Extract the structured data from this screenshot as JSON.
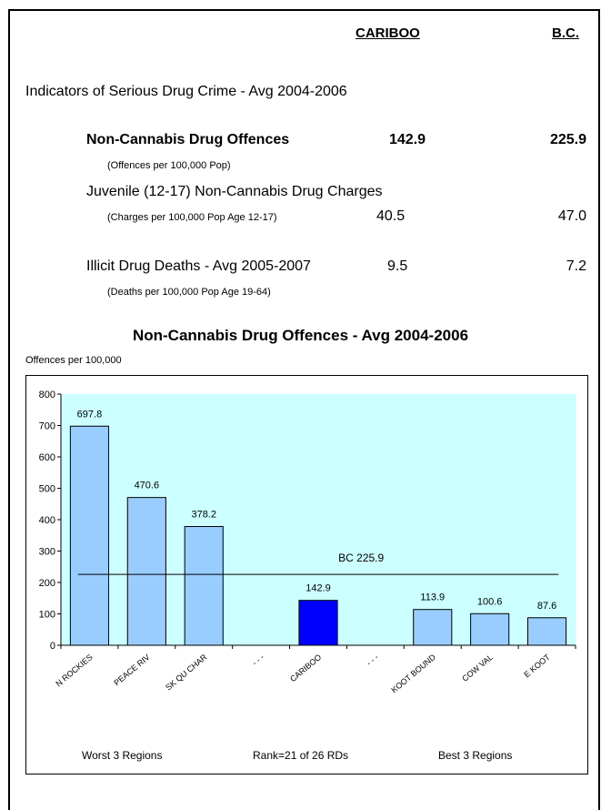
{
  "header": {
    "col1": "CARIBOO",
    "col2": "B.C."
  },
  "section_title": "Indicators of Serious Drug Crime - Avg 2004-2006",
  "indicators": {
    "noncannabis": {
      "label": "Non-Cannabis Drug Offences",
      "sub": "(Offences per 100,000 Pop)",
      "cariboo": "142.9",
      "bc": "225.9"
    },
    "juvenile": {
      "label": "Juvenile (12-17) Non-Cannabis Drug Charges",
      "sub": "(Charges per 100,000 Pop Age 12-17)",
      "cariboo": "40.5",
      "bc": "47.0"
    },
    "deaths": {
      "label": "Illicit Drug Deaths - Avg 2005-2007",
      "sub": "(Deaths per 100,000 Pop Age 19-64)",
      "cariboo": "9.5",
      "bc": "7.2"
    }
  },
  "chart_data": {
    "type": "bar",
    "title": "Non-Cannabis Drug Offences - Avg 2004-2006",
    "ylabel": "Offences per 100,000",
    "ylim": [
      0,
      800
    ],
    "yticks": [
      0,
      100,
      200,
      300,
      400,
      500,
      600,
      700,
      800
    ],
    "categories": [
      "N ROCKIES",
      "PEACE RIV",
      "SK QU CHAR",
      "- - -",
      "CARIBOO",
      "- - -",
      "KOOT BOUND",
      "COW VAL",
      "E KOOT"
    ],
    "values": [
      697.8,
      470.6,
      378.2,
      null,
      142.9,
      null,
      113.9,
      100.6,
      87.6
    ],
    "value_labels": [
      "697.8",
      "470.6",
      "378.2",
      "",
      "142.9",
      "",
      "113.9",
      "100.6",
      "87.6"
    ],
    "highlight_index": 4,
    "reference_line": {
      "value": 225.9,
      "label": "BC 225.9"
    },
    "footer_labels": [
      "Worst 3 Regions",
      "Rank=21 of 26 RDs",
      "Best 3 Regions"
    ],
    "colors": {
      "bar": "#99ccff",
      "highlight": "#0000ff",
      "plot_bg": "#ccffff"
    }
  }
}
